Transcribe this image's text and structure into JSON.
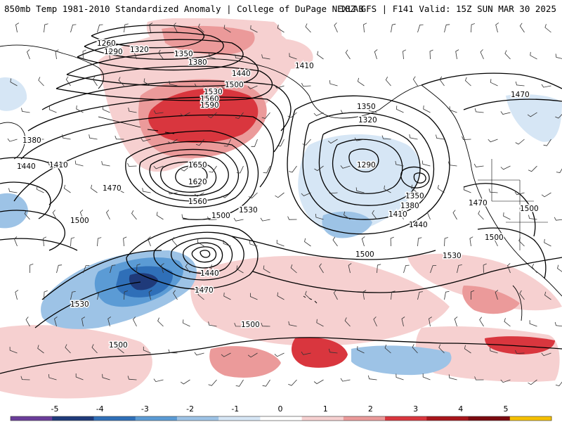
{
  "header": {
    "left_title": "850mb Temp 1981-2010 Standardized Anomaly | College of DuPage NEXLAB",
    "right_title": "18Z GFS | F141 Valid: 15Z SUN MAR 30 2025"
  },
  "colorbar": {
    "labels": [
      "-5",
      "-4",
      "-3",
      "-2",
      "-1",
      "0",
      "1",
      "2",
      "3",
      "4",
      "5"
    ],
    "colors": [
      "#6a3d9a",
      "#1f3a7a",
      "#2f6fb8",
      "#5b9bd5",
      "#9dc3e6",
      "#d6e6f5",
      "#ffffff",
      "#f6d0d0",
      "#eb9a9a",
      "#d9363e",
      "#a8151b",
      "#7a0a10",
      "#f5c000"
    ]
  },
  "map": {
    "height_labels": [
      "1260",
      "1290",
      "1320",
      "1350",
      "1380",
      "1410",
      "1440",
      "1500",
      "1530",
      "1560",
      "1590",
      "1650",
      "1620",
      "1560",
      "1500",
      "1380",
      "1410",
      "1440",
      "1470",
      "1500",
      "1350",
      "1320",
      "1290",
      "1350",
      "1380",
      "1410",
      "1440",
      "1470",
      "1470",
      "1500",
      "1500",
      "1500",
      "1530",
      "1500",
      "1440",
      "1470",
      "1530",
      "1500",
      "1500",
      "1530",
      "1470",
      "1500"
    ],
    "colors": {
      "warm_light": "#f6d0d0",
      "warm_medium": "#eb9a9a",
      "warm_strong": "#d9363e",
      "warm_extreme": "#a8151b",
      "cold_light": "#d6e6f5",
      "cold_medium": "#9dc3e6",
      "cold_strong": "#5b9bd5",
      "cold_deep": "#2f6fb8",
      "cold_extreme": "#1f3a7a"
    }
  }
}
